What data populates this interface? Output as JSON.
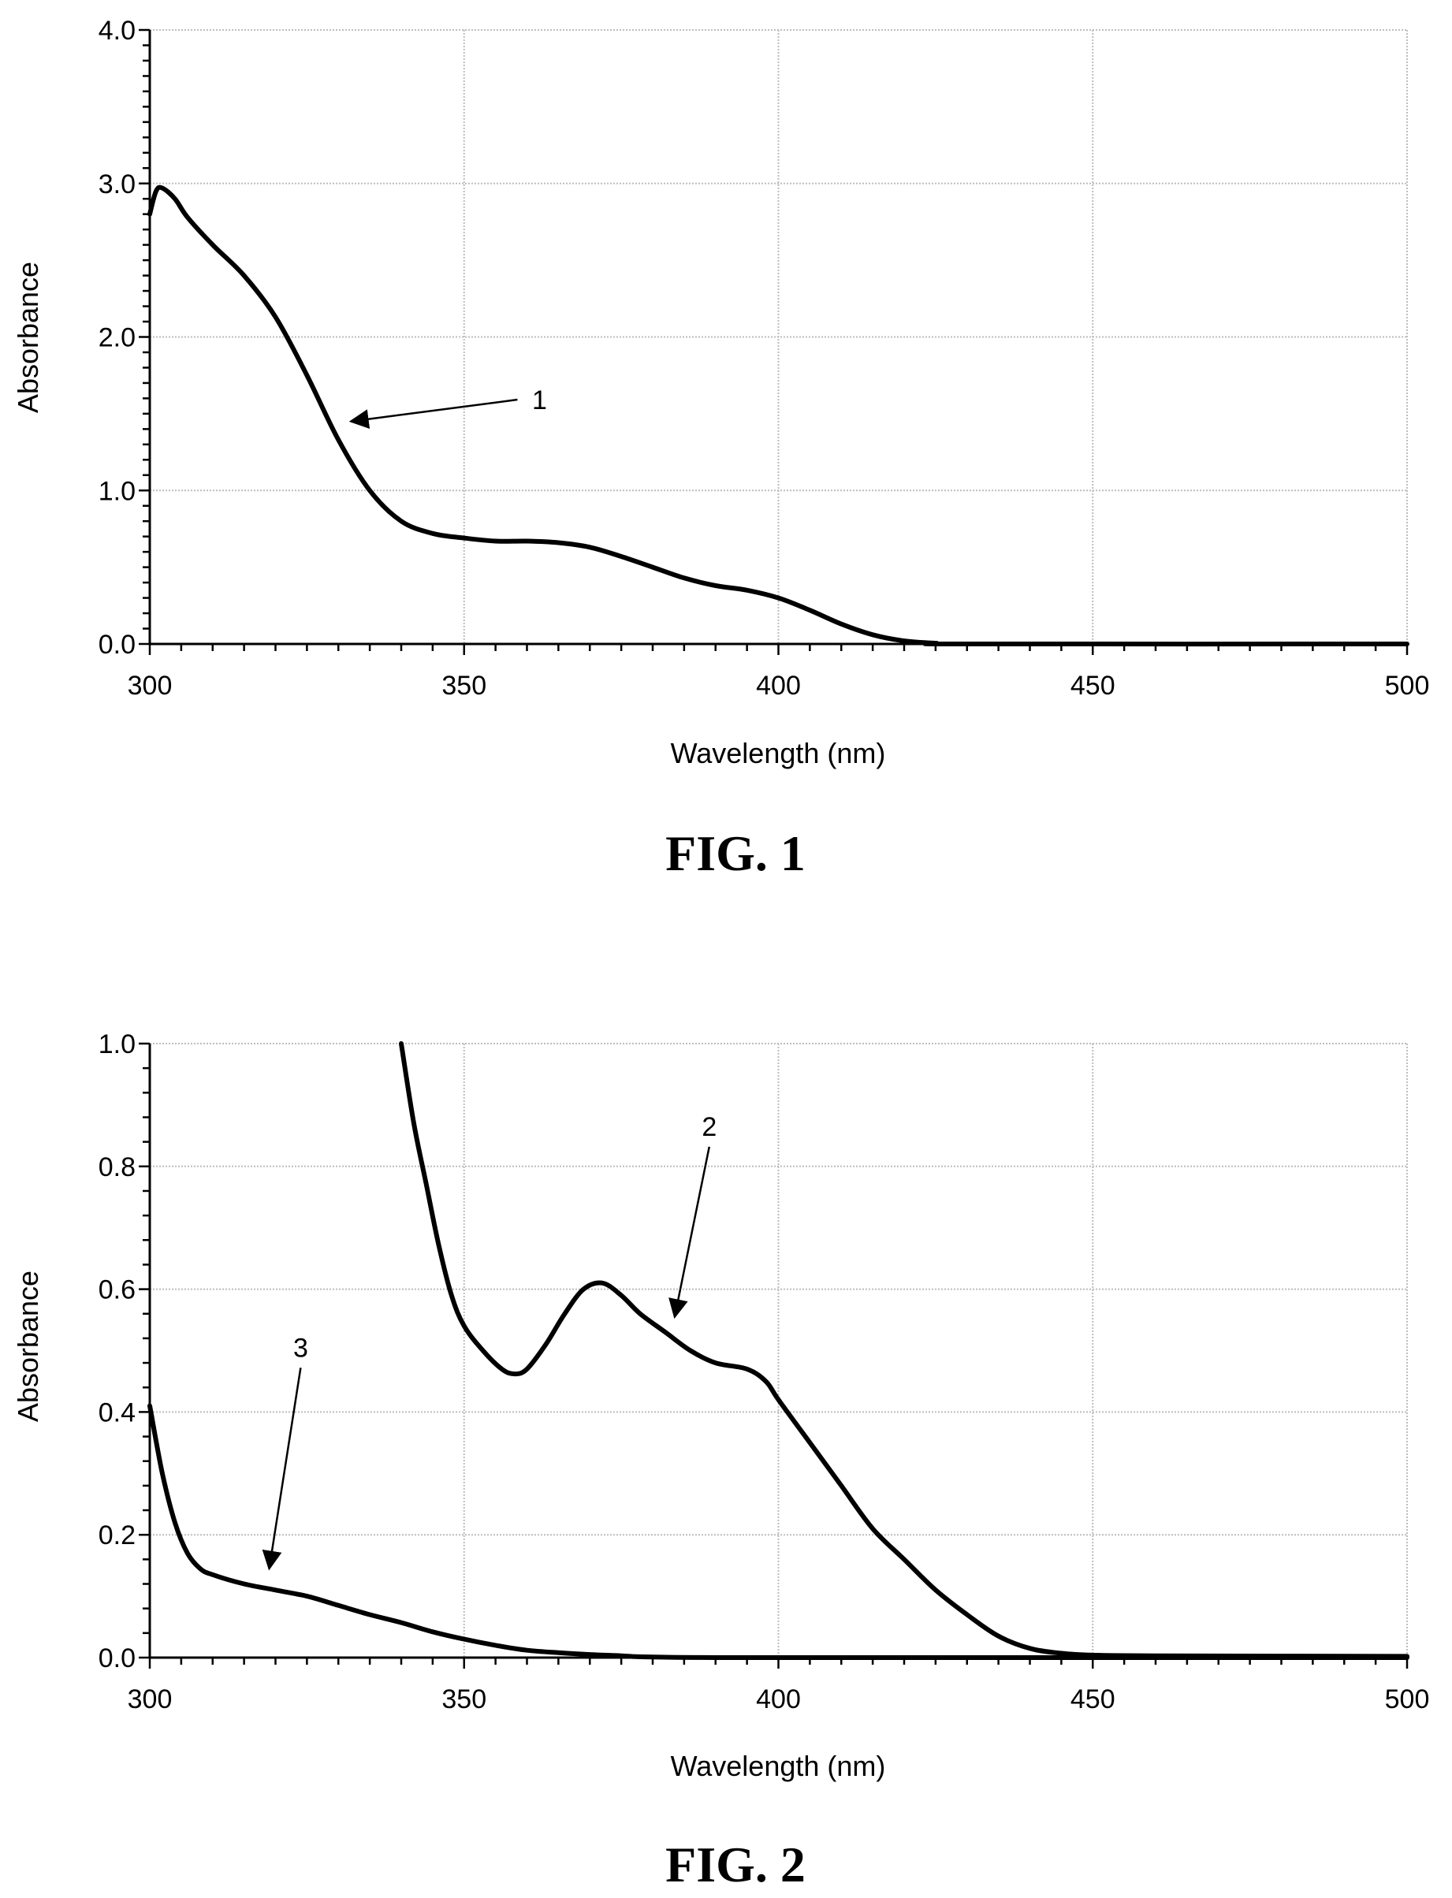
{
  "chart_data": [
    {
      "type": "line",
      "caption": "FIG. 1",
      "xlabel": "Wavelength (nm)",
      "ylabel": "Absorbance",
      "xlim": [
        300,
        500
      ],
      "ylim": [
        0,
        4
      ],
      "x_ticks": [
        "300",
        "350",
        "400",
        "450",
        "500"
      ],
      "y_ticks": [
        "0.0",
        "1.0",
        "2.0",
        "3.0",
        "4.0"
      ],
      "grid": true,
      "series": [
        {
          "label": "1",
          "color": "#000000",
          "points": [
            [
              300,
              2.8
            ],
            [
              301,
              2.95
            ],
            [
              302,
              2.97
            ],
            [
              304,
              2.9
            ],
            [
              306,
              2.78
            ],
            [
              310,
              2.6
            ],
            [
              315,
              2.4
            ],
            [
              320,
              2.13
            ],
            [
              325,
              1.75
            ],
            [
              330,
              1.33
            ],
            [
              335,
              1.0
            ],
            [
              340,
              0.8
            ],
            [
              345,
              0.72
            ],
            [
              350,
              0.69
            ],
            [
              355,
              0.67
            ],
            [
              360,
              0.67
            ],
            [
              365,
              0.66
            ],
            [
              370,
              0.63
            ],
            [
              375,
              0.57
            ],
            [
              380,
              0.5
            ],
            [
              385,
              0.43
            ],
            [
              390,
              0.38
            ],
            [
              395,
              0.35
            ],
            [
              400,
              0.3
            ],
            [
              405,
              0.22
            ],
            [
              410,
              0.13
            ],
            [
              415,
              0.06
            ],
            [
              420,
              0.02
            ],
            [
              425,
              0.005
            ],
            [
              430,
              0.0
            ],
            [
              500,
              0.0
            ]
          ]
        }
      ],
      "annotations": [
        {
          "text": "1",
          "x": 362,
          "y": 1.53,
          "arrow_to": [
            332,
            1.45
          ]
        }
      ]
    },
    {
      "type": "line",
      "caption": "FIG. 2",
      "xlabel": "Wavelength (nm)",
      "ylabel": "Absorbance",
      "xlim": [
        300,
        500
      ],
      "ylim": [
        0,
        1
      ],
      "x_ticks": [
        "300",
        "350",
        "400",
        "450",
        "500"
      ],
      "y_ticks": [
        "0.0",
        "0.2",
        "0.4",
        "0.6",
        "0.8",
        "1.0"
      ],
      "grid": true,
      "series": [
        {
          "label": "2",
          "color": "#000000",
          "points": [
            [
              340,
              1.0
            ],
            [
              342,
              0.87
            ],
            [
              344,
              0.77
            ],
            [
              346,
              0.67
            ],
            [
              348,
              0.59
            ],
            [
              350,
              0.54
            ],
            [
              353,
              0.5
            ],
            [
              356,
              0.47
            ],
            [
              358,
              0.462
            ],
            [
              360,
              0.47
            ],
            [
              363,
              0.51
            ],
            [
              366,
              0.56
            ],
            [
              369,
              0.6
            ],
            [
              372,
              0.61
            ],
            [
              375,
              0.59
            ],
            [
              378,
              0.56
            ],
            [
              382,
              0.53
            ],
            [
              386,
              0.5
            ],
            [
              390,
              0.48
            ],
            [
              395,
              0.47
            ],
            [
              398,
              0.45
            ],
            [
              400,
              0.42
            ],
            [
              405,
              0.35
            ],
            [
              410,
              0.28
            ],
            [
              415,
              0.21
            ],
            [
              420,
              0.16
            ],
            [
              425,
              0.11
            ],
            [
              430,
              0.07
            ],
            [
              435,
              0.035
            ],
            [
              440,
              0.015
            ],
            [
              445,
              0.007
            ],
            [
              450,
              0.004
            ],
            [
              460,
              0.003
            ],
            [
              500,
              0.002
            ]
          ]
        },
        {
          "label": "3",
          "color": "#000000",
          "points": [
            [
              300,
              0.41
            ],
            [
              302,
              0.3
            ],
            [
              304,
              0.22
            ],
            [
              306,
              0.17
            ],
            [
              308,
              0.145
            ],
            [
              310,
              0.135
            ],
            [
              315,
              0.12
            ],
            [
              320,
              0.11
            ],
            [
              325,
              0.1
            ],
            [
              330,
              0.085
            ],
            [
              335,
              0.07
            ],
            [
              340,
              0.057
            ],
            [
              345,
              0.042
            ],
            [
              350,
              0.03
            ],
            [
              355,
              0.02
            ],
            [
              360,
              0.012
            ],
            [
              365,
              0.008
            ],
            [
              370,
              0.005
            ],
            [
              375,
              0.003
            ],
            [
              380,
              0.001
            ],
            [
              400,
              0.0
            ],
            [
              500,
              0.0
            ]
          ]
        }
      ],
      "annotations": [
        {
          "text": "2",
          "x": 389,
          "y": 0.85,
          "arrow_to": [
            383.5,
            0.555
          ]
        },
        {
          "text": "3",
          "x": 324,
          "y": 0.49,
          "arrow_to": [
            319,
            0.145
          ]
        }
      ]
    }
  ]
}
